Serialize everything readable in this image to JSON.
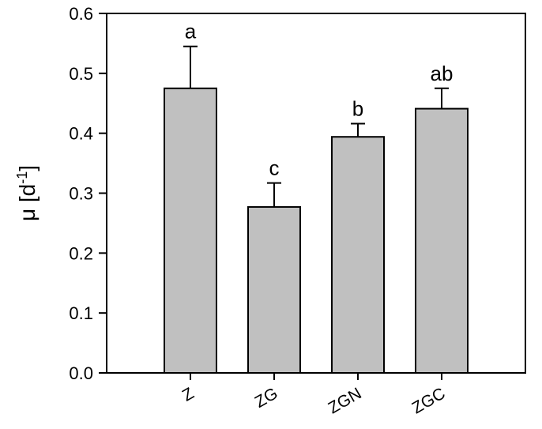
{
  "chart_data": {
    "type": "bar",
    "categories": [
      "Z",
      "ZG",
      "ZGN",
      "ZGC"
    ],
    "values": [
      0.475,
      0.277,
      0.394,
      0.441
    ],
    "errors": [
      0.07,
      0.04,
      0.022,
      0.034
    ],
    "significance_labels": [
      "a",
      "c",
      "b",
      "ab"
    ],
    "ylabel": "μ [d",
    "ylabel_superscript": "-1",
    "ylabel_close": "]",
    "ylim": [
      0.0,
      0.6
    ],
    "yticks": [
      0.0,
      0.1,
      0.2,
      0.3,
      0.4,
      0.5,
      0.6
    ],
    "ytick_labels": [
      "0.0",
      "0.1",
      "0.2",
      "0.3",
      "0.4",
      "0.5",
      "0.6"
    ],
    "bar_color": "#c0c0c0",
    "edge_color": "#000000",
    "grid": false
  }
}
